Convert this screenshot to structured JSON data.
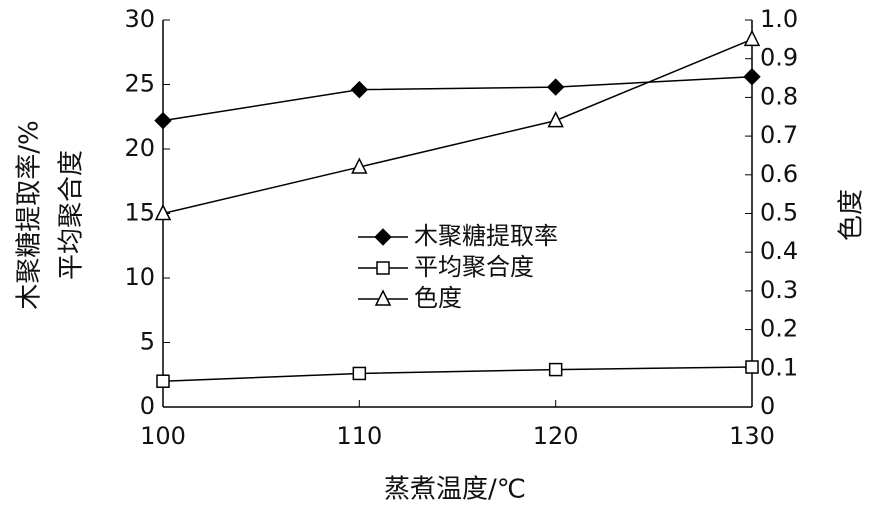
{
  "chart_data": {
    "type": "line",
    "x_label": "蒸煮温度/℃",
    "y_label_lines": [
      "木聚糖提取率/%",
      "平均聚合度"
    ],
    "y2_label": "色度",
    "x": [
      100,
      110,
      120,
      130
    ],
    "xlim": [
      100,
      130
    ],
    "xticks": [
      100,
      110,
      120,
      130
    ],
    "ylim": [
      0,
      30
    ],
    "yticks": [
      0,
      5,
      10,
      15,
      20,
      25,
      30
    ],
    "y2lim": [
      0,
      1
    ],
    "y2ticks": [
      0,
      0.1,
      0.2,
      0.3,
      0.4,
      0.5,
      0.6,
      0.7,
      0.8,
      0.9,
      {
        "value": 1,
        "label": "1.0"
      }
    ],
    "series": [
      {
        "name": "木聚糖提取率",
        "color": "#000000",
        "marker": "diamond",
        "values": [
          22.2,
          24.6,
          24.8,
          25.6
        ]
      },
      {
        "name": "平均聚合度",
        "color": "#000000",
        "marker": "square",
        "values": [
          2.0,
          2.6,
          2.9,
          3.1
        ]
      },
      {
        "name": "色度",
        "color": "#000000",
        "marker": "triangle",
        "axis": "y2",
        "values": [
          0.5,
          0.62,
          0.74,
          0.95
        ]
      }
    ]
  }
}
